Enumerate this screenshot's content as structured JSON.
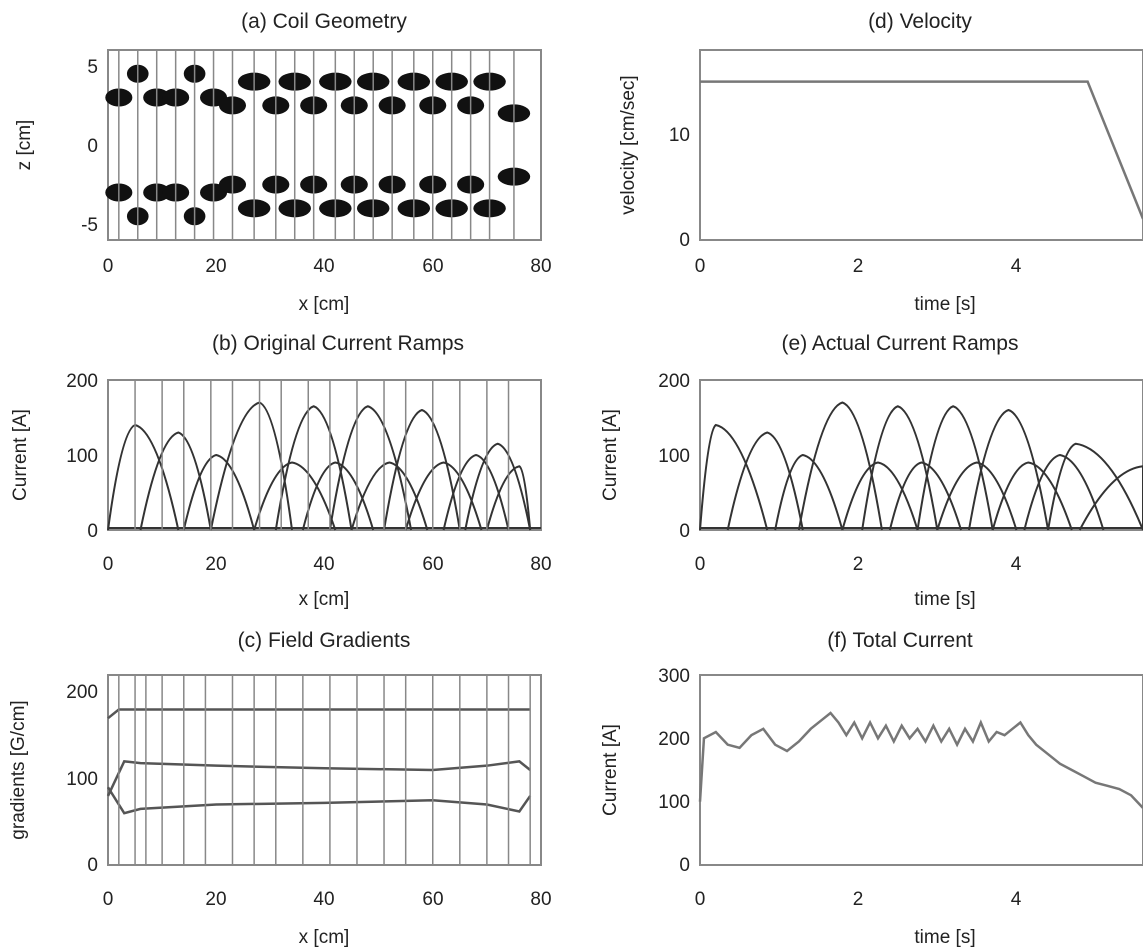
{
  "charts": [
    {
      "title": "(a) Coil Geometry",
      "xlabel": "x [cm]",
      "ylabel": "z [cm]",
      "xlim": [
        0,
        80
      ],
      "ylim": [
        -6,
        6
      ],
      "xticks": [
        "0",
        "20",
        "40",
        "60",
        "80"
      ],
      "yticks": [
        "-5",
        "0",
        "5"
      ]
    },
    {
      "title": "(d) Velocity",
      "xlabel": "time [s]",
      "ylabel": "velocity [cm/sec]",
      "xlim": [
        0,
        5.6
      ],
      "ylim": [
        0,
        18
      ],
      "xticks": [
        "0",
        "2",
        "4"
      ],
      "yticks": [
        "0",
        "10"
      ]
    },
    {
      "title": "(b) Original Current Ramps",
      "xlabel": "x [cm]",
      "ylabel": "Current [A]",
      "xlim": [
        0,
        80
      ],
      "ylim": [
        0,
        200
      ],
      "xticks": [
        "0",
        "20",
        "40",
        "60",
        "80"
      ],
      "yticks": [
        "0",
        "100",
        "200"
      ]
    },
    {
      "title": "(e) Actual Current Ramps",
      "xlabel": "time [s]",
      "ylabel": "Current [A]",
      "xlim": [
        0,
        5.6
      ],
      "ylim": [
        0,
        200
      ],
      "xticks": [
        "0",
        "2",
        "4"
      ],
      "yticks": [
        "0",
        "100",
        "200"
      ]
    },
    {
      "title": "(c) Field Gradients",
      "xlabel": "x [cm]",
      "ylabel": "gradients [G/cm]",
      "xlim": [
        0,
        80
      ],
      "ylim": [
        0,
        220
      ],
      "xticks": [
        "0",
        "20",
        "40",
        "60",
        "80"
      ],
      "yticks": [
        "0",
        "100",
        "200"
      ]
    },
    {
      "title": "(f) Total Current",
      "xlabel": "time [s]",
      "ylabel": "Current [A]",
      "xlim": [
        0,
        5.6
      ],
      "ylim": [
        0,
        300
      ],
      "xticks": [
        "0",
        "2",
        "4"
      ],
      "yticks": [
        "0",
        "100",
        "200",
        "300"
      ]
    }
  ],
  "chart_data": [
    {
      "type": "scatter",
      "title": "(a) Coil Geometry",
      "xlabel": "x [cm]",
      "ylabel": "z [cm]",
      "xlim": [
        0,
        80
      ],
      "ylim": [
        -6,
        6
      ],
      "grid": false,
      "coil_x_centers": [
        2,
        5.5,
        9,
        12.5,
        16,
        19.5,
        23,
        27,
        31,
        34.5,
        38,
        42,
        45.5,
        49,
        52.5,
        56.5,
        60,
        63.5,
        67,
        70.5,
        75
      ],
      "coil_abs_z": [
        3,
        4.5,
        3,
        3,
        4.5,
        3,
        2.5,
        4,
        2.5,
        4,
        2.5,
        4,
        2.5,
        4,
        2.5,
        4,
        2.5,
        4,
        2.5,
        4,
        2
      ],
      "coil_widths_cm": [
        5,
        4,
        5,
        5,
        4,
        5,
        5,
        6,
        5,
        6,
        5,
        6,
        5,
        6,
        5,
        6,
        5,
        6,
        5,
        6,
        6
      ]
    },
    {
      "type": "line",
      "title": "(d) Velocity",
      "xlabel": "time [s]",
      "ylabel": "velocity [cm/sec]",
      "xlim": [
        0,
        5.6
      ],
      "ylim": [
        0,
        18
      ],
      "grid": false,
      "series": [
        {
          "x": [
            0,
            4.9,
            5.6
          ],
          "y": [
            15,
            15,
            2
          ]
        }
      ]
    },
    {
      "type": "line",
      "title": "(b) Original Current Ramps",
      "xlabel": "x [cm]",
      "ylabel": "Current [A]",
      "xlim": [
        0,
        80
      ],
      "ylim": [
        0,
        200
      ],
      "grid": false,
      "ramps_x": [
        {
          "start": 0,
          "peak": 5,
          "end": 13,
          "height": 140
        },
        {
          "start": 6,
          "peak": 13,
          "end": 19,
          "height": 130
        },
        {
          "start": 14,
          "peak": 20,
          "end": 27,
          "height": 100
        },
        {
          "start": 19,
          "peak": 28,
          "end": 34,
          "height": 170
        },
        {
          "start": 27,
          "peak": 34,
          "end": 42,
          "height": 90
        },
        {
          "start": 31,
          "peak": 38,
          "end": 45,
          "height": 165
        },
        {
          "start": 36,
          "peak": 42,
          "end": 49,
          "height": 90
        },
        {
          "start": 41,
          "peak": 48,
          "end": 56,
          "height": 165
        },
        {
          "start": 45,
          "peak": 52,
          "end": 59,
          "height": 90
        },
        {
          "start": 51,
          "peak": 58,
          "end": 65,
          "height": 160
        },
        {
          "start": 55,
          "peak": 62,
          "end": 69,
          "height": 90
        },
        {
          "start": 62,
          "peak": 68,
          "end": 74,
          "height": 100
        },
        {
          "start": 66,
          "peak": 72,
          "end": 78,
          "height": 115
        },
        {
          "start": 70,
          "peak": 76,
          "end": 78,
          "height": 85
        }
      ],
      "vertical_lines_x": [
        5,
        10,
        14,
        19,
        23,
        28,
        32,
        37,
        41,
        46,
        51,
        55,
        60,
        65,
        70,
        74
      ]
    },
    {
      "type": "line",
      "title": "(e) Actual Current Ramps",
      "xlabel": "time [s]",
      "ylabel": "Current [A]",
      "xlim": [
        0,
        5.6
      ],
      "ylim": [
        0,
        200
      ],
      "grid": false,
      "ramps_t": [
        {
          "start": 0,
          "peak": 0.2,
          "end": 0.85,
          "height": 140
        },
        {
          "start": 0.35,
          "peak": 0.85,
          "end": 1.3,
          "height": 130
        },
        {
          "start": 0.95,
          "peak": 1.3,
          "end": 1.8,
          "height": 100
        },
        {
          "start": 1.25,
          "peak": 1.8,
          "end": 2.3,
          "height": 170
        },
        {
          "start": 1.8,
          "peak": 2.25,
          "end": 2.75,
          "height": 90
        },
        {
          "start": 2.05,
          "peak": 2.5,
          "end": 3.0,
          "height": 165
        },
        {
          "start": 2.4,
          "peak": 2.8,
          "end": 3.3,
          "height": 90
        },
        {
          "start": 2.75,
          "peak": 3.2,
          "end": 3.7,
          "height": 165
        },
        {
          "start": 3.0,
          "peak": 3.5,
          "end": 4.0,
          "height": 90
        },
        {
          "start": 3.4,
          "peak": 3.9,
          "end": 4.4,
          "height": 160
        },
        {
          "start": 3.7,
          "peak": 4.15,
          "end": 4.7,
          "height": 90
        },
        {
          "start": 4.1,
          "peak": 4.55,
          "end": 5.1,
          "height": 100
        },
        {
          "start": 4.4,
          "peak": 4.75,
          "end": 5.6,
          "height": 115
        },
        {
          "start": 4.8,
          "peak": 5.6,
          "end": 5.6,
          "height": 85
        }
      ]
    },
    {
      "type": "line",
      "title": "(c) Field Gradients",
      "xlabel": "x [cm]",
      "ylabel": "gradients [G/cm]",
      "xlim": [
        0,
        80
      ],
      "ylim": [
        0,
        220
      ],
      "grid": false,
      "series": [
        {
          "x": [
            0,
            2,
            78
          ],
          "y": [
            170,
            180,
            180
          ]
        },
        {
          "x": [
            0,
            3,
            6,
            20,
            40,
            60,
            70,
            76,
            78
          ],
          "y": [
            80,
            120,
            118,
            115,
            112,
            110,
            115,
            120,
            110
          ]
        },
        {
          "x": [
            0,
            3,
            6,
            20,
            40,
            60,
            70,
            76,
            78
          ],
          "y": [
            90,
            60,
            65,
            70,
            72,
            75,
            70,
            62,
            80
          ]
        }
      ],
      "vertical_lines_x": [
        2,
        5,
        7,
        10,
        14,
        18,
        23,
        27,
        31,
        36,
        41,
        46,
        51,
        55,
        60,
        65,
        70,
        74,
        78
      ]
    },
    {
      "type": "line",
      "title": "(f) Total Current",
      "xlabel": "time [s]",
      "ylabel": "Current [A]",
      "xlim": [
        0,
        5.6
      ],
      "ylim": [
        0,
        300
      ],
      "grid": false,
      "series": [
        {
          "x": [
            0,
            0.05,
            0.2,
            0.35,
            0.5,
            0.65,
            0.8,
            0.95,
            1.1,
            1.25,
            1.4,
            1.55,
            1.65,
            1.75,
            1.85,
            1.95,
            2.05,
            2.15,
            2.25,
            2.35,
            2.45,
            2.55,
            2.65,
            2.75,
            2.85,
            2.95,
            3.05,
            3.15,
            3.25,
            3.35,
            3.45,
            3.55,
            3.65,
            3.75,
            3.85,
            3.95,
            4.05,
            4.15,
            4.25,
            4.4,
            4.55,
            4.7,
            4.85,
            5.0,
            5.15,
            5.3,
            5.45,
            5.6
          ],
          "y": [
            100,
            200,
            210,
            190,
            185,
            205,
            215,
            190,
            180,
            195,
            215,
            230,
            240,
            225,
            205,
            225,
            200,
            225,
            200,
            220,
            195,
            220,
            200,
            215,
            195,
            220,
            195,
            215,
            190,
            215,
            195,
            225,
            195,
            210,
            205,
            215,
            225,
            205,
            190,
            175,
            160,
            150,
            140,
            130,
            125,
            120,
            110,
            90
          ]
        }
      ]
    }
  ]
}
